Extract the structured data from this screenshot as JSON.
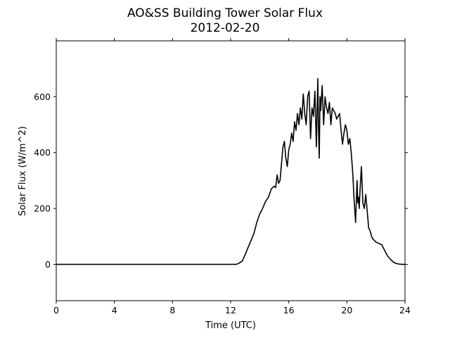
{
  "chart_data": {
    "type": "line",
    "title": "AO&SS Building Tower Solar Flux",
    "subtitle": "2012-02-20",
    "xlabel": "Time (UTC)",
    "ylabel": "Solar Flux (W/m^2)",
    "xlim": [
      0,
      24
    ],
    "ylim": [
      -130,
      800
    ],
    "x_ticks": [
      0,
      4,
      8,
      12,
      16,
      20,
      24
    ],
    "y_ticks": [
      0,
      200,
      400,
      600
    ],
    "grid": false,
    "line_color": "#000000",
    "series": [
      {
        "x": [
          0,
          4,
          8,
          12,
          12.4,
          12.6,
          12.8,
          13.0,
          13.2,
          13.4,
          13.6,
          13.8,
          14.0,
          14.2,
          14.4,
          14.6,
          14.8,
          15.0,
          15.1,
          15.2,
          15.3,
          15.4,
          15.5,
          15.6,
          15.7,
          15.8,
          15.9,
          16.0,
          16.1,
          16.2,
          16.3,
          16.4,
          16.5,
          16.6,
          16.7,
          16.8,
          16.9,
          17.0,
          17.1,
          17.2,
          17.3,
          17.4,
          17.5,
          17.6,
          17.7,
          17.8,
          17.9,
          18.0,
          18.05,
          18.1,
          18.15,
          18.2,
          18.3,
          18.4,
          18.5,
          18.6,
          18.7,
          18.8,
          18.9,
          19.0,
          19.1,
          19.2,
          19.3,
          19.4,
          19.5,
          19.6,
          19.7,
          19.8,
          19.9,
          20.0,
          20.1,
          20.2,
          20.3,
          20.4,
          20.5,
          20.6,
          20.7,
          20.75,
          20.8,
          20.85,
          20.9,
          21.0,
          21.1,
          21.2,
          21.3,
          21.4,
          21.5,
          21.6,
          21.7,
          21.8,
          22.0,
          22.2,
          22.4,
          22.6,
          22.8,
          23.0,
          23.2,
          23.4,
          23.6,
          23.8,
          24
        ],
        "y": [
          0,
          0,
          0,
          0,
          0,
          5,
          12,
          35,
          60,
          85,
          110,
          150,
          180,
          200,
          225,
          240,
          270,
          280,
          275,
          320,
          290,
          300,
          360,
          420,
          440,
          380,
          350,
          410,
          430,
          470,
          440,
          510,
          480,
          540,
          500,
          560,
          520,
          610,
          540,
          500,
          600,
          620,
          450,
          560,
          530,
          620,
          420,
          665,
          480,
          380,
          600,
          550,
          640,
          500,
          600,
          560,
          540,
          580,
          500,
          560,
          550,
          540,
          520,
          530,
          540,
          480,
          430,
          470,
          500,
          480,
          430,
          450,
          400,
          330,
          230,
          150,
          300,
          220,
          240,
          200,
          260,
          350,
          220,
          200,
          250,
          190,
          130,
          120,
          100,
          90,
          80,
          75,
          70,
          50,
          30,
          18,
          8,
          3,
          1,
          0,
          0
        ]
      }
    ]
  }
}
